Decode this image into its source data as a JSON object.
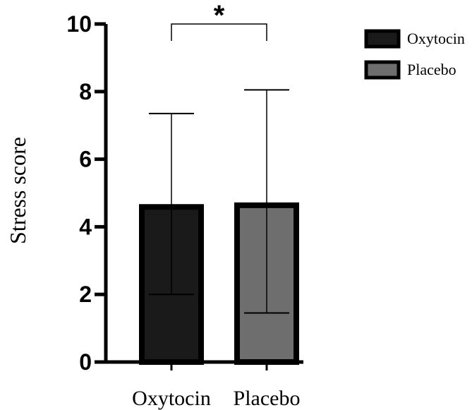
{
  "chart_data": {
    "type": "bar",
    "title": "",
    "xlabel": "",
    "ylabel": "Stress score",
    "ylim": [
      0,
      10
    ],
    "yticks": [
      0,
      2,
      4,
      6,
      8,
      10
    ],
    "ytick_labels": [
      "0",
      "2",
      "4",
      "6",
      "8",
      "10"
    ],
    "grid": false,
    "legend_position": "top-right",
    "categories": [
      "Oxytocin",
      "Placebo"
    ],
    "series": [
      {
        "name": "Stress score",
        "values": [
          4.65,
          4.7
        ],
        "error_lower": [
          2.0,
          1.45
        ],
        "error_upper": [
          7.35,
          8.05
        ],
        "colors": [
          "#1a1a1a",
          "#6e6e6e"
        ]
      }
    ],
    "legend": [
      {
        "label": "Oxytocin",
        "color": "#1a1a1a"
      },
      {
        "label": "Placebo",
        "color": "#6e6e6e"
      }
    ],
    "annotations": [
      {
        "type": "significance",
        "text": "*",
        "between": [
          "Oxytocin",
          "Placebo"
        ]
      }
    ]
  }
}
